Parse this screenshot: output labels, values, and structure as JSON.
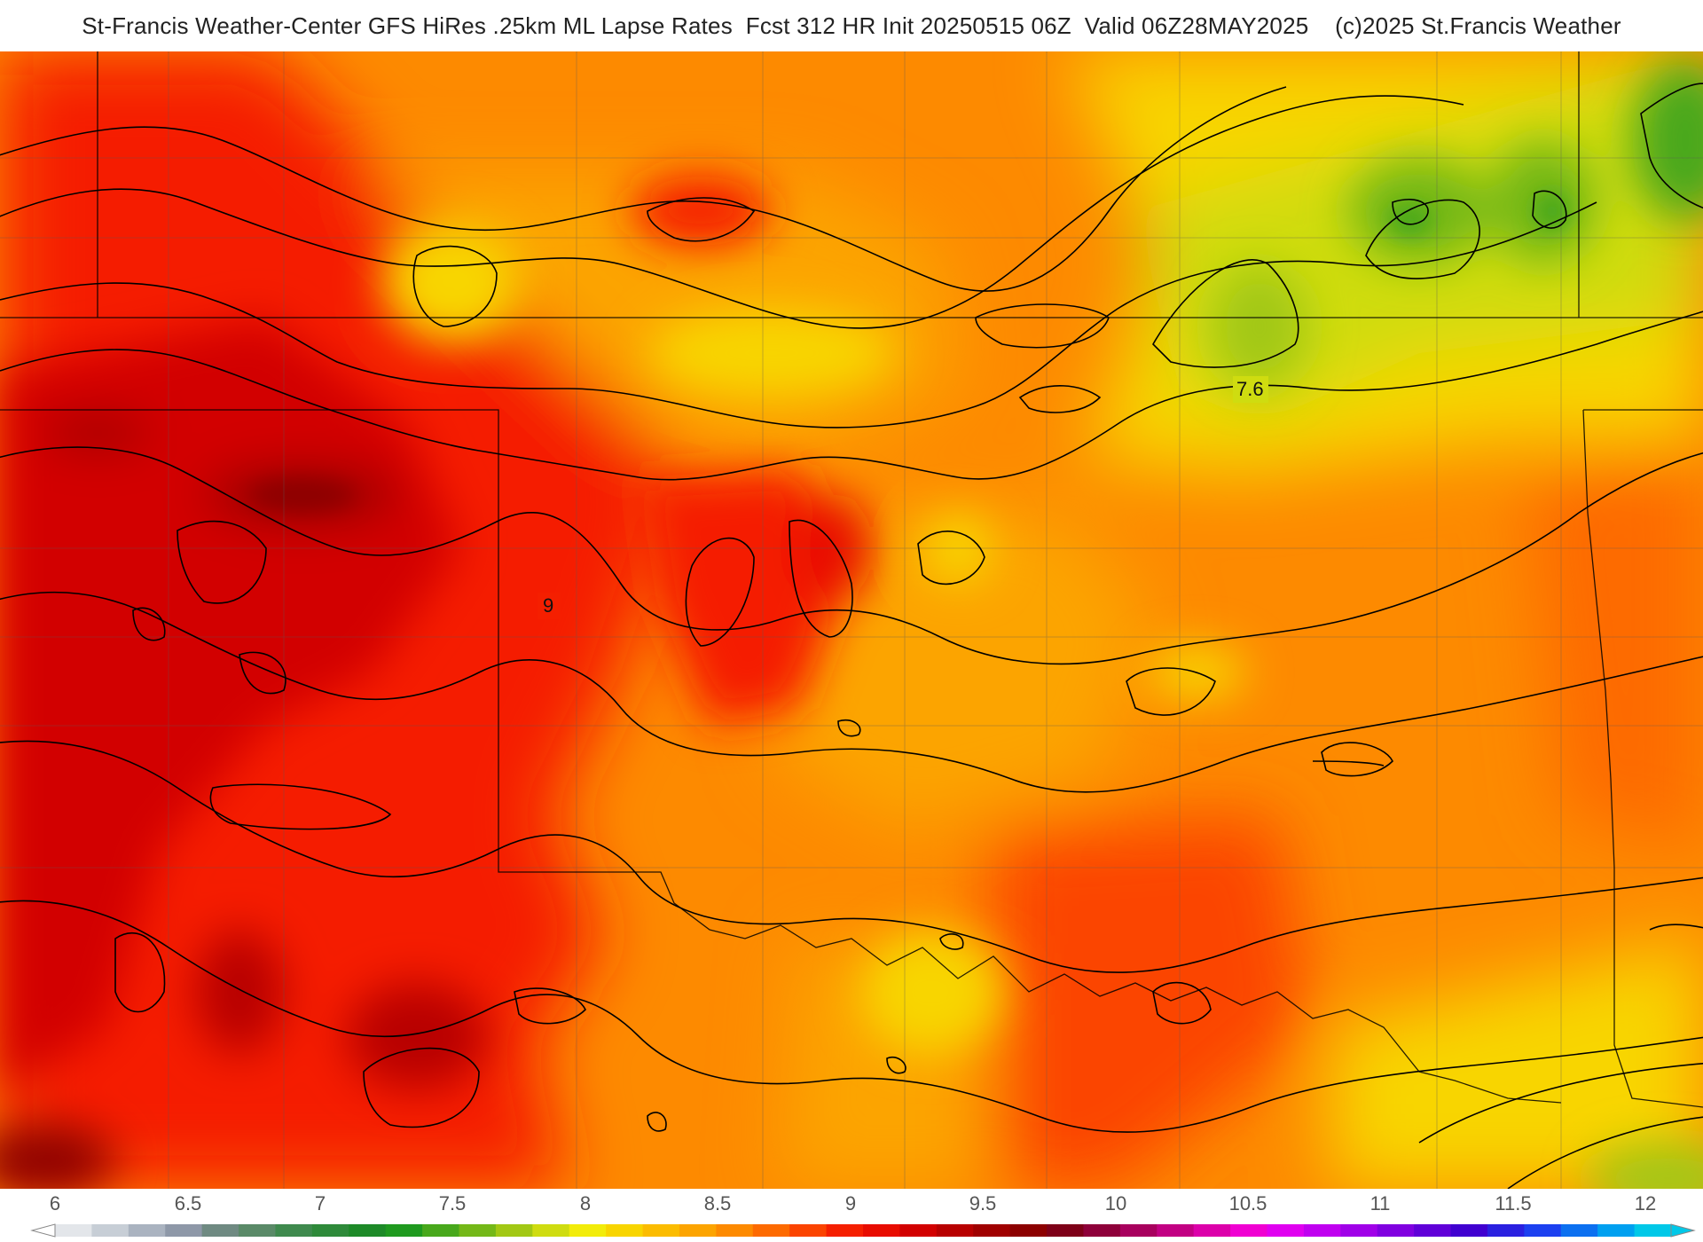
{
  "title": "St-Francis Weather-Center GFS HiRes .25km ML Lapse Rates  Fcst 312 HR Init 20250515 06Z  Valid 06Z28MAY2025    (c)2025 St.Francis Weather",
  "contour_labels": [
    "9",
    "7.6"
  ],
  "colorbar": {
    "ticks": [
      "6",
      "6.5",
      "7",
      "7.5",
      "8",
      "8.5",
      "9",
      "9.5",
      "10",
      "10.5",
      "11",
      "11.5",
      "12"
    ],
    "colors": [
      "#e3e6ea",
      "#c7ced6",
      "#aab3c0",
      "#8e98a8",
      "#6f8a82",
      "#5a8a68",
      "#3f8a4e",
      "#2e8a3a",
      "#1d8a28",
      "#1f9a1f",
      "#48a81c",
      "#74b818",
      "#a2c814",
      "#cfdc10",
      "#f2ec0a",
      "#f8d500",
      "#fbbc00",
      "#fca400",
      "#fd8a00",
      "#fd6a00",
      "#fb4400",
      "#f51f00",
      "#e80c00",
      "#d20000",
      "#b80000",
      "#a00000",
      "#8c0000",
      "#7e0018",
      "#8e003a",
      "#a8005e",
      "#c20083",
      "#dc00aa",
      "#f000d2",
      "#e000f0",
      "#c000f0",
      "#a000e8",
      "#8000e0",
      "#6000d8",
      "#4000d0",
      "#2a20e0",
      "#1c40f0",
      "#0c70f0",
      "#00a0f0",
      "#00c8e8"
    ],
    "colors_note_legend": "ramp from gray-green (6) through yellow, orange, red (9), magenta, purple, blue to cyan (12)"
  }
}
